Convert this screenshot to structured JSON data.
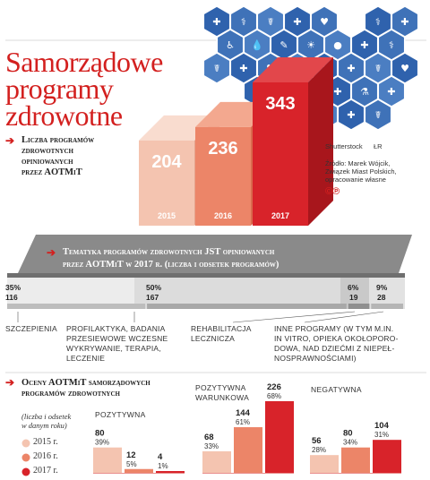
{
  "title_lines": [
    "Samorządowe",
    "programy",
    "zdrowotne"
  ],
  "colors": {
    "y2015": "#f4c4b0",
    "y2016": "#ec8568",
    "y2017": "#d8232a",
    "accent": "#d3201f",
    "icons": "#3f72b8",
    "band": "#8a8a8a"
  },
  "icons": [
    "ambulance-icon",
    "hospital-bed-icon",
    "nurse-icon",
    "first-aid-kit-icon",
    "ribbon-icon",
    "medicine-bottle-icon",
    "thermometer-icon",
    "microscope-icon",
    "wheelchair-icon",
    "drop-icon",
    "syringe-icon",
    "brain-icon",
    "pills-icon",
    "stethoscope-icon",
    "clipboard-icon",
    "capsule-icon",
    "doctor-icon"
  ],
  "credits": {
    "shutterstock": "Shutterstock",
    "lr": "ŁR",
    "source_lines": [
      "Źródło: Marek Wójcik,",
      "Związek Miast Polskich,",
      "opracowanie własne"
    ],
    "cp": "©℗"
  },
  "section1": {
    "heading_lines": [
      "Liczba programów",
      "zdrowotnych",
      "opiniowanych",
      "przez AOTMiT"
    ]
  },
  "section2": {
    "heading_lines": [
      "Tematyka programów zdrowotnych JST opiniowanych",
      "przez AOTMiT w 2017 r. (liczba i odsetek programów)"
    ]
  },
  "section3": {
    "heading_lines": [
      "Oceny AOTMiT samorządowych",
      "programów zdrowotnych"
    ],
    "legend_note_lines": [
      "(liczba i odsetek",
      "w danym roku)"
    ],
    "legend": [
      "2015 r.",
      "2016 r.",
      "2017 r."
    ]
  },
  "chart_data": [
    {
      "type": "bar",
      "categories": [
        "2015",
        "2016",
        "2017"
      ],
      "values": [
        204,
        236,
        343
      ]
    },
    {
      "type": "bar",
      "categories": [
        "SZCZEPIENIA",
        "PROFILAKTYKA, BADANIA PRZESIEWOWE WCZESNE WYKRYWANIE, TERAPIA, LECZENIE",
        "REHABILITACJA LECZNICZA",
        "INNE PROGRAMY (W TYM M.IN. IN VITRO, OPIEKA OKOŁOPORODOWA, NAD DZIEĆMI Z NIEPEŁNOSPRAWNOŚCIAMI)"
      ],
      "category_lines": [
        [
          "SZCZEPIENIA"
        ],
        [
          "PROFILAKTYKA, BADANIA",
          "PRZESIEWOWE WCZESNE",
          "WYKRYWANIE, TERAPIA,",
          "LECZENIE"
        ],
        [
          "REHABILITACJA",
          "LECZNICZA"
        ],
        [
          "INNE PROGRAMY (W TYM M.IN.",
          "IN VITRO, OPIEKA OKOŁOPORO-",
          "DOWA, NAD DZIEĆMI Z NIEPEŁ-",
          "NOSPRAWNOŚCIAMI)"
        ]
      ],
      "percent_labels": [
        "35%",
        "50%",
        "6%",
        "9%"
      ],
      "count_labels": [
        "116",
        "167",
        "19",
        "28"
      ],
      "values": [
        116,
        167,
        19,
        28
      ]
    },
    {
      "type": "bar",
      "categories": [
        "POZYTYWNA",
        "POZYTYWNA WARUNKOWA",
        "NEGATYWNA"
      ],
      "category_lines": [
        [
          "POZYTYWNA"
        ],
        [
          "POZYTYWNA",
          "WARUNKOWA"
        ],
        [
          "NEGATYWNA"
        ]
      ],
      "series": [
        {
          "name": "2015 r.",
          "values": [
            80,
            68,
            56
          ],
          "percent_labels": [
            "39%",
            "33%",
            "28%"
          ]
        },
        {
          "name": "2016 r.",
          "values": [
            12,
            144,
            80
          ],
          "percent_labels": [
            "5%",
            "61%",
            "34%"
          ]
        },
        {
          "name": "2017 r.",
          "values": [
            4,
            226,
            104
          ],
          "percent_labels": [
            "1%",
            "68%",
            "31%"
          ]
        }
      ]
    }
  ]
}
